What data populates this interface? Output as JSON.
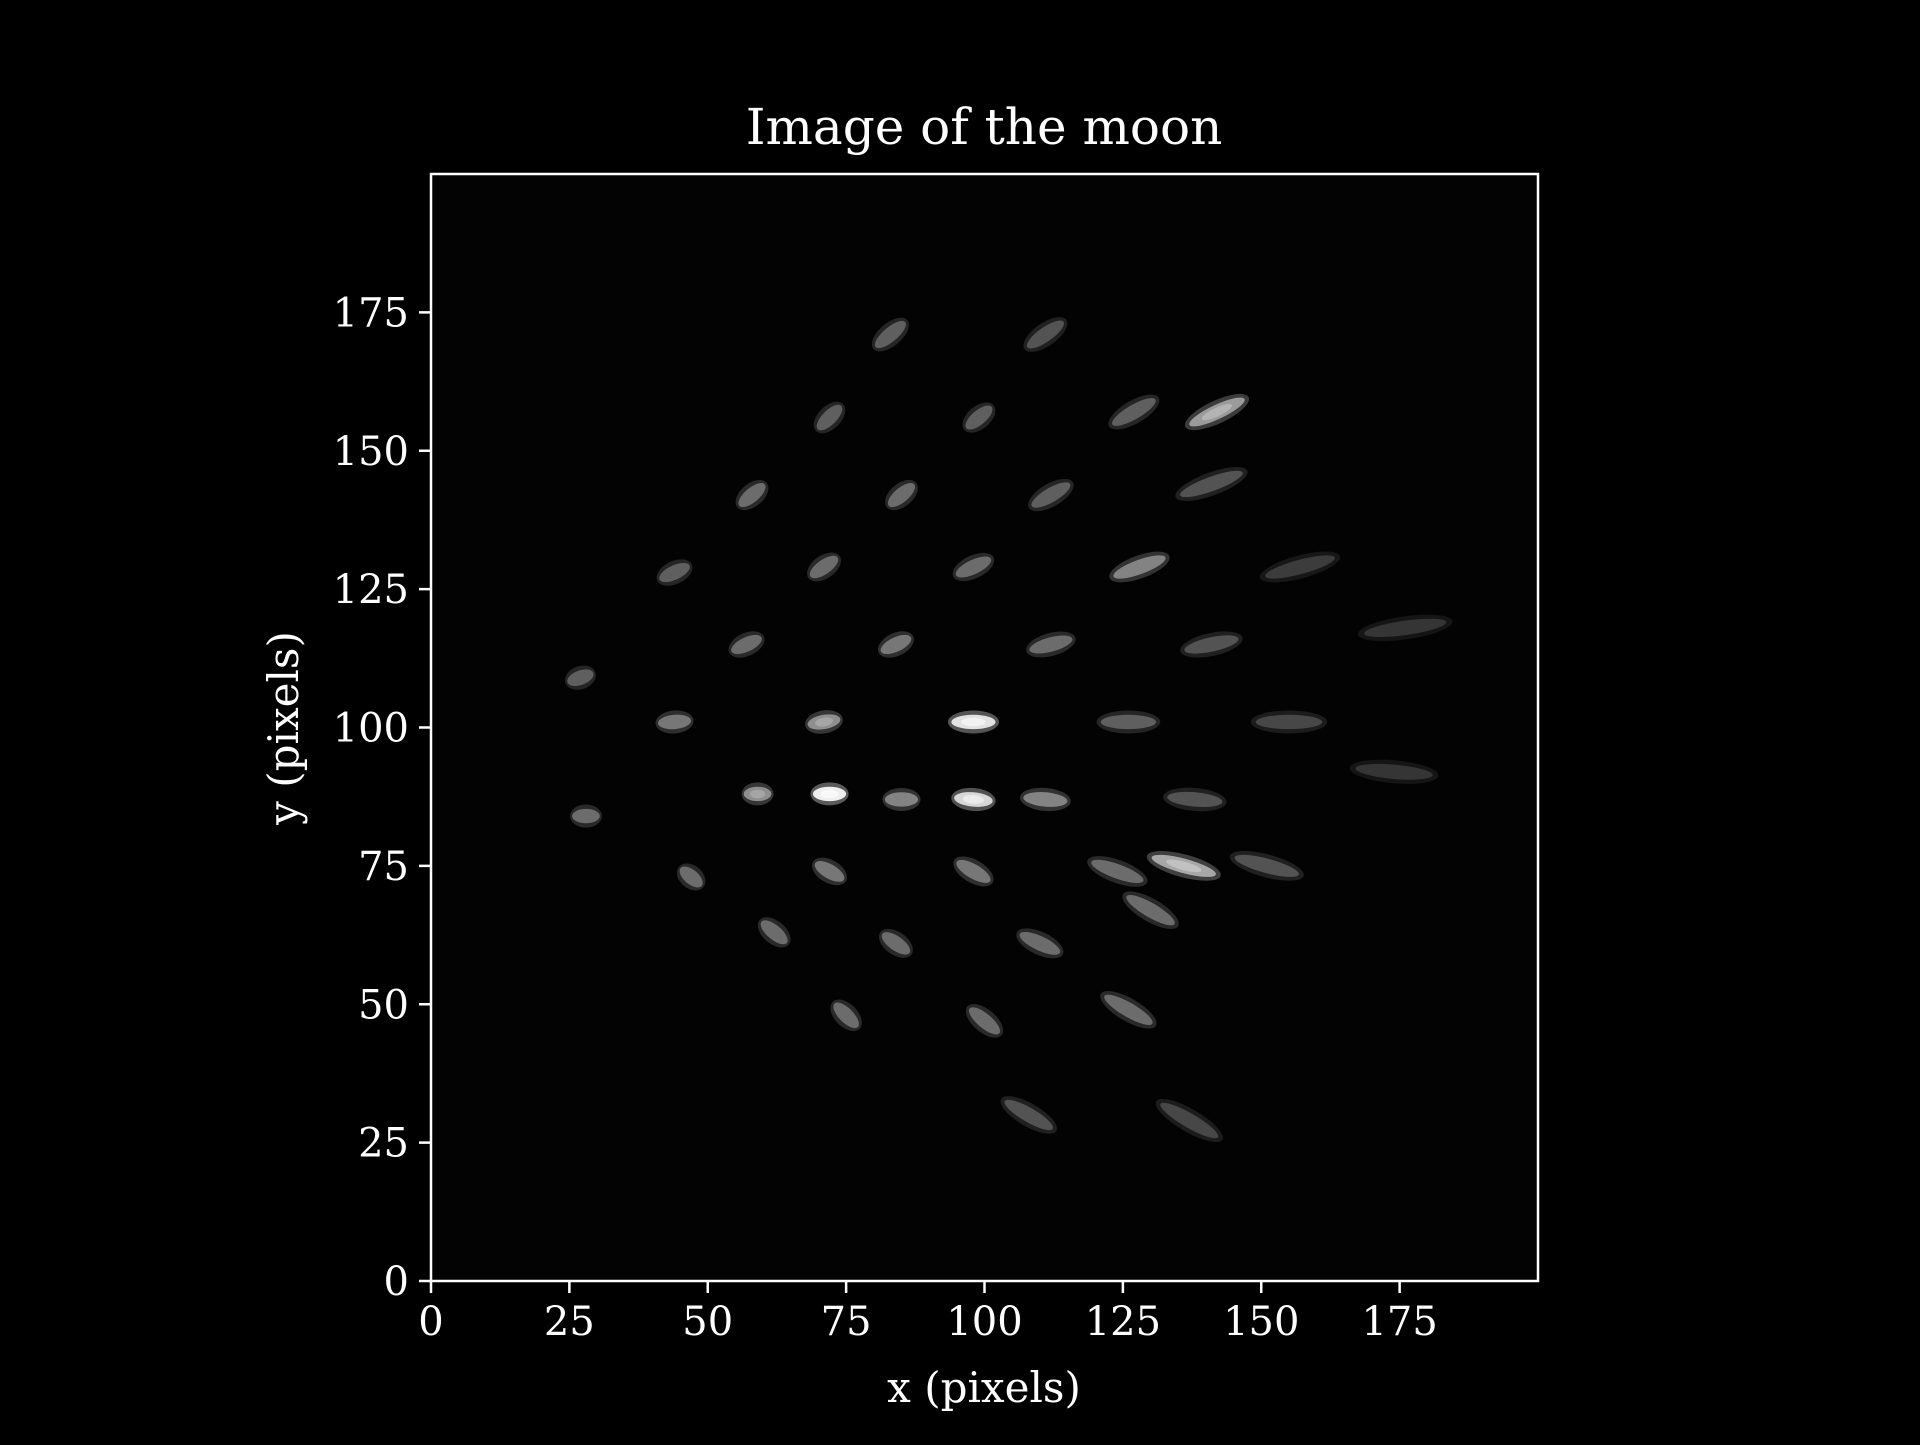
{
  "chart_data": {
    "type": "heatmap",
    "title": "Image of the moon",
    "xlabel": "x (pixels)",
    "ylabel": "y (pixels)",
    "xlim": [
      0,
      200
    ],
    "ylim": [
      0,
      200
    ],
    "xticks": [
      0,
      25,
      50,
      75,
      100,
      125,
      150,
      175
    ],
    "yticks": [
      0,
      25,
      50,
      75,
      100,
      125,
      150,
      175
    ],
    "colormap": "gray",
    "background": "#000000",
    "foreground": "#ffffff",
    "spots": [
      {
        "x": 83,
        "y": 171,
        "length": 7,
        "angle": 40,
        "brightness": 0.4
      },
      {
        "x": 111,
        "y": 171,
        "length": 8,
        "angle": 35,
        "brightness": 0.35
      },
      {
        "x": 72,
        "y": 156,
        "length": 6,
        "angle": 45,
        "brightness": 0.4
      },
      {
        "x": 99,
        "y": 156,
        "length": 6,
        "angle": 40,
        "brightness": 0.4
      },
      {
        "x": 127,
        "y": 157,
        "length": 9,
        "angle": 30,
        "brightness": 0.4
      },
      {
        "x": 142,
        "y": 157,
        "length": 11,
        "angle": 25,
        "brightness": 0.65
      },
      {
        "x": 58,
        "y": 142,
        "length": 6,
        "angle": 40,
        "brightness": 0.45
      },
      {
        "x": 85,
        "y": 142,
        "length": 6,
        "angle": 40,
        "brightness": 0.45
      },
      {
        "x": 112,
        "y": 142,
        "length": 8,
        "angle": 30,
        "brightness": 0.4
      },
      {
        "x": 141,
        "y": 144,
        "length": 12,
        "angle": 20,
        "brightness": 0.35
      },
      {
        "x": 44,
        "y": 128,
        "length": 6,
        "angle": 25,
        "brightness": 0.4
      },
      {
        "x": 71,
        "y": 129,
        "length": 6,
        "angle": 35,
        "brightness": 0.45
      },
      {
        "x": 98,
        "y": 129,
        "length": 7,
        "angle": 25,
        "brightness": 0.45
      },
      {
        "x": 128,
        "y": 129,
        "length": 10,
        "angle": 20,
        "brightness": 0.55
      },
      {
        "x": 157,
        "y": 129,
        "length": 13,
        "angle": 15,
        "brightness": 0.25
      },
      {
        "x": 57,
        "y": 115,
        "length": 6,
        "angle": 25,
        "brightness": 0.45
      },
      {
        "x": 84,
        "y": 115,
        "length": 6,
        "angle": 25,
        "brightness": 0.5
      },
      {
        "x": 112,
        "y": 115,
        "length": 8,
        "angle": 15,
        "brightness": 0.45
      },
      {
        "x": 141,
        "y": 115,
        "length": 10,
        "angle": 12,
        "brightness": 0.35
      },
      {
        "x": 176,
        "y": 118,
        "length": 15,
        "angle": 8,
        "brightness": 0.22
      },
      {
        "x": 27,
        "y": 109,
        "length": 5,
        "angle": 20,
        "brightness": 0.4
      },
      {
        "x": 44,
        "y": 101,
        "length": 6,
        "angle": 5,
        "brightness": 0.5
      },
      {
        "x": 71,
        "y": 101,
        "length": 6,
        "angle": 10,
        "brightness": 0.6
      },
      {
        "x": 98,
        "y": 101,
        "length": 8,
        "angle": 0,
        "brightness": 0.95
      },
      {
        "x": 126,
        "y": 101,
        "length": 10,
        "angle": 0,
        "brightness": 0.4
      },
      {
        "x": 155,
        "y": 101,
        "length": 12,
        "angle": 0,
        "brightness": 0.3
      },
      {
        "x": 59,
        "y": 88,
        "length": 5,
        "angle": 0,
        "brightness": 0.6
      },
      {
        "x": 72,
        "y": 88,
        "length": 6,
        "angle": 0,
        "brightness": 1.0
      },
      {
        "x": 85,
        "y": 87,
        "length": 6,
        "angle": 0,
        "brightness": 0.55
      },
      {
        "x": 98,
        "y": 87,
        "length": 7,
        "angle": -5,
        "brightness": 0.9
      },
      {
        "x": 111,
        "y": 87,
        "length": 8,
        "angle": -5,
        "brightness": 0.55
      },
      {
        "x": 138,
        "y": 87,
        "length": 10,
        "angle": -5,
        "brightness": 0.35
      },
      {
        "x": 174,
        "y": 92,
        "length": 14,
        "angle": -5,
        "brightness": 0.22
      },
      {
        "x": 28,
        "y": 84,
        "length": 5,
        "angle": 0,
        "brightness": 0.45
      },
      {
        "x": 47,
        "y": 73,
        "length": 5,
        "angle": -40,
        "brightness": 0.45
      },
      {
        "x": 72,
        "y": 74,
        "length": 6,
        "angle": -30,
        "brightness": 0.5
      },
      {
        "x": 98,
        "y": 74,
        "length": 7,
        "angle": -30,
        "brightness": 0.5
      },
      {
        "x": 124,
        "y": 74,
        "length": 10,
        "angle": -20,
        "brightness": 0.45
      },
      {
        "x": 136,
        "y": 75,
        "length": 12,
        "angle": -15,
        "brightness": 0.7
      },
      {
        "x": 151,
        "y": 75,
        "length": 12,
        "angle": -15,
        "brightness": 0.35
      },
      {
        "x": 130,
        "y": 67,
        "length": 10,
        "angle": -30,
        "brightness": 0.45
      },
      {
        "x": 62,
        "y": 63,
        "length": 6,
        "angle": -40,
        "brightness": 0.45
      },
      {
        "x": 84,
        "y": 61,
        "length": 6,
        "angle": -35,
        "brightness": 0.45
      },
      {
        "x": 110,
        "y": 61,
        "length": 8,
        "angle": -25,
        "brightness": 0.45
      },
      {
        "x": 75,
        "y": 48,
        "length": 6,
        "angle": -45,
        "brightness": 0.45
      },
      {
        "x": 100,
        "y": 47,
        "length": 7,
        "angle": -40,
        "brightness": 0.45
      },
      {
        "x": 126,
        "y": 49,
        "length": 10,
        "angle": -30,
        "brightness": 0.45
      },
      {
        "x": 108,
        "y": 30,
        "length": 10,
        "angle": -30,
        "brightness": 0.35
      },
      {
        "x": 137,
        "y": 29,
        "length": 12,
        "angle": -30,
        "brightness": 0.3
      }
    ]
  }
}
